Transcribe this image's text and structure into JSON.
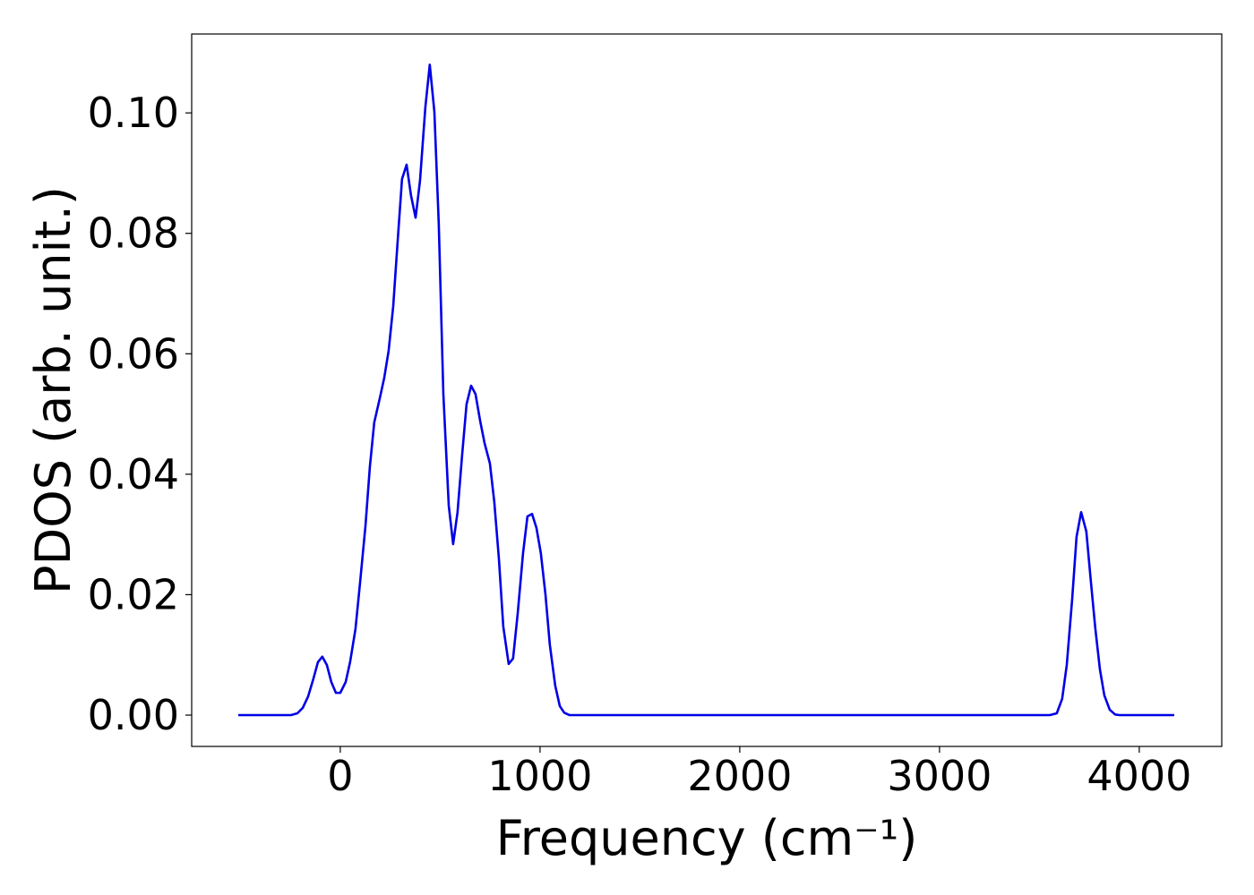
{
  "chart_data": {
    "type": "line",
    "xlabel": "Frequency (cm⁻¹)",
    "ylabel": "PDOS (arb. unit.)",
    "x": [
      -511,
      -247,
      -215,
      -188,
      -161,
      -135,
      -112,
      -90,
      -67,
      -45,
      -22,
      0,
      27,
      49,
      76,
      99,
      126,
      148,
      170,
      197,
      220,
      242,
      265,
      287,
      309,
      332,
      354,
      377,
      399,
      426,
      448,
      471,
      493,
      516,
      543,
      565,
      587,
      610,
      632,
      655,
      677,
      700,
      722,
      749,
      771,
      794,
      816,
      843,
      865,
      888,
      915,
      937,
      960,
      982,
      1004,
      1027,
      1049,
      1076,
      1099,
      1121,
      1148,
      3552,
      3587,
      3614,
      3637,
      3664,
      3686,
      3709,
      3735,
      3758,
      3780,
      3803,
      3825,
      3852,
      3879,
      3901,
      4175
    ],
    "series": [
      {
        "color": "#0000e6",
        "values": [
          0,
          0,
          0.0003,
          0.0012,
          0.0031,
          0.006,
          0.0088,
          0.0097,
          0.0083,
          0.0055,
          0.0037,
          0.0037,
          0.0055,
          0.0088,
          0.0143,
          0.022,
          0.0314,
          0.0412,
          0.0486,
          0.0525,
          0.056,
          0.0605,
          0.0679,
          0.0786,
          0.089,
          0.0914,
          0.0863,
          0.0826,
          0.0887,
          0.101,
          0.108,
          0.1002,
          0.0816,
          0.0533,
          0.0348,
          0.0284,
          0.0337,
          0.0432,
          0.0516,
          0.0547,
          0.0533,
          0.0489,
          0.0452,
          0.0418,
          0.0354,
          0.026,
          0.0147,
          0.0085,
          0.0094,
          0.0168,
          0.0269,
          0.033,
          0.0334,
          0.0311,
          0.0269,
          0.0201,
          0.0117,
          0.0049,
          0.0015,
          0.0004,
          0,
          0,
          0.0003,
          0.0027,
          0.0083,
          0.0192,
          0.0296,
          0.0337,
          0.0305,
          0.0221,
          0.0144,
          0.0076,
          0.0033,
          0.0009,
          0.0001,
          0,
          0
        ]
      }
    ],
    "xlim": [
      -744,
      4413
    ],
    "ylim": [
      -0.0052,
      0.1131
    ],
    "xticks": [
      0,
      1000,
      2000,
      3000,
      4000
    ],
    "yticks": [
      {
        "value": 0,
        "label": "0.00"
      },
      {
        "value": 0.02,
        "label": "0.02"
      },
      {
        "value": 0.04,
        "label": "0.04"
      },
      {
        "value": 0.06,
        "label": "0.06"
      },
      {
        "value": 0.08,
        "label": "0.08"
      },
      {
        "value": 0.1,
        "label": "0.10"
      }
    ]
  }
}
